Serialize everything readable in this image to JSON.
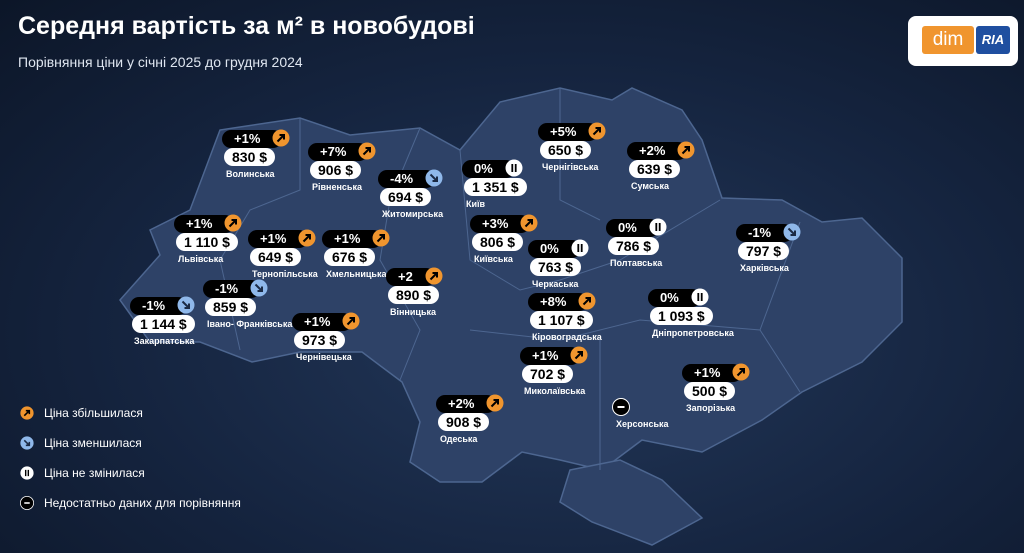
{
  "header": {
    "title": "Середня вартість за м² в новобудові",
    "subtitle": "Порівняння ціни у січні 2025 до грудня 2024"
  },
  "logo": {
    "left": "dim",
    "right": "RIA"
  },
  "regions": [
    {
      "name": "Волинська",
      "change": "+1%",
      "price": "830 $",
      "status": "up"
    },
    {
      "name": "Рівненська",
      "change": "+7%",
      "price": "906 $",
      "status": "up"
    },
    {
      "name": "Житомирська",
      "change": "-4%",
      "price": "694 $",
      "status": "down"
    },
    {
      "name": "Київ",
      "change": "0%",
      "price": "1 351 $",
      "status": "same"
    },
    {
      "name": "Чернігівська",
      "change": "+5%",
      "price": "650 $",
      "status": "up"
    },
    {
      "name": "Сумська",
      "change": "+2%",
      "price": "639 $",
      "status": "up"
    },
    {
      "name": "Львівська",
      "change": "+1%",
      "price": "1 110 $",
      "status": "up"
    },
    {
      "name": "Тернопільська",
      "change": "+1%",
      "price": "649 $",
      "status": "up"
    },
    {
      "name": "Хмельницька",
      "change": "+1%",
      "price": "676 $",
      "status": "up"
    },
    {
      "name": "Київська",
      "change": "+3%",
      "price": "806 $",
      "status": "up"
    },
    {
      "name": "Черкаська",
      "change": "0%",
      "price": "763 $",
      "status": "same"
    },
    {
      "name": "Полтавська",
      "change": "0%",
      "price": "786 $",
      "status": "same"
    },
    {
      "name": "Харківська",
      "change": "-1%",
      "price": "797 $",
      "status": "down"
    },
    {
      "name": "Івано- Франківська",
      "change": "-1%",
      "price": "859 $",
      "status": "down"
    },
    {
      "name": "Закарпатська",
      "change": "-1%",
      "price": "1 144 $",
      "status": "down"
    },
    {
      "name": "Вінницька",
      "change": "+2",
      "price": "890 $",
      "status": "up"
    },
    {
      "name": "Кіровоградська",
      "change": "+8%",
      "price": "1 107 $",
      "status": "up"
    },
    {
      "name": "Дніпропетровська",
      "change": "0%",
      "price": "1 093 $",
      "status": "same"
    },
    {
      "name": "Чернівецька",
      "change": "+1%",
      "price": "973 $",
      "status": "up"
    },
    {
      "name": "Миколаївська",
      "change": "+1%",
      "price": "702 $",
      "status": "up"
    },
    {
      "name": "Запорізька",
      "change": "+1%",
      "price": "500 $",
      "status": "up"
    },
    {
      "name": "Одеська",
      "change": "+2%",
      "price": "908 $",
      "status": "up"
    },
    {
      "name": "Херсонська",
      "status": "none"
    }
  ],
  "legend": [
    {
      "label": "Ціна збільшилася",
      "status": "up"
    },
    {
      "label": "Ціна зменшилася",
      "status": "down"
    },
    {
      "label": "Ціна не змінилася",
      "status": "same"
    },
    {
      "label": "Недостатньо даних для порівняння",
      "status": "none"
    }
  ]
}
